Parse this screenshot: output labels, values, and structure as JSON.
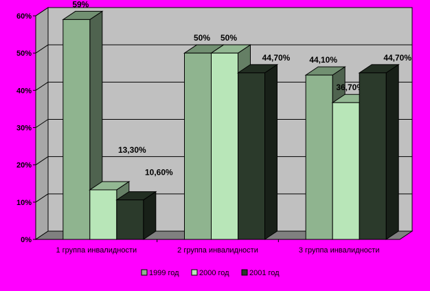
{
  "chart_data": {
    "type": "bar",
    "title": "",
    "xlabel": "",
    "ylabel": "",
    "ylim": [
      0,
      60
    ],
    "yticks": [
      "0%",
      "10%",
      "20%",
      "30%",
      "40%",
      "50%",
      "60%"
    ],
    "categories": [
      "1 группа инвалидности",
      "2 группа инвалидности",
      "3 группа инвалидности"
    ],
    "series": [
      {
        "name": "1999 год",
        "values": [
          59,
          50,
          44.1
        ],
        "labels": [
          "59%",
          "50%",
          "44,10%"
        ],
        "color": "#8fb48f"
      },
      {
        "name": "2000 год",
        "values": [
          13.3,
          50,
          36.7
        ],
        "labels": [
          "13,30%",
          "50%",
          "36,70%"
        ],
        "color": "#b8e6b8"
      },
      {
        "name": "2001 год",
        "values": [
          10.6,
          44.7,
          44.7
        ],
        "labels": [
          "10,60%",
          "44,70%",
          "44,70%"
        ],
        "color": "#2b3a2b"
      }
    ],
    "grid": true,
    "legend": "bottom",
    "colors": {
      "background": "#ff00ff",
      "plot_wall": "#c0c0c0",
      "floor": "#808080"
    }
  }
}
